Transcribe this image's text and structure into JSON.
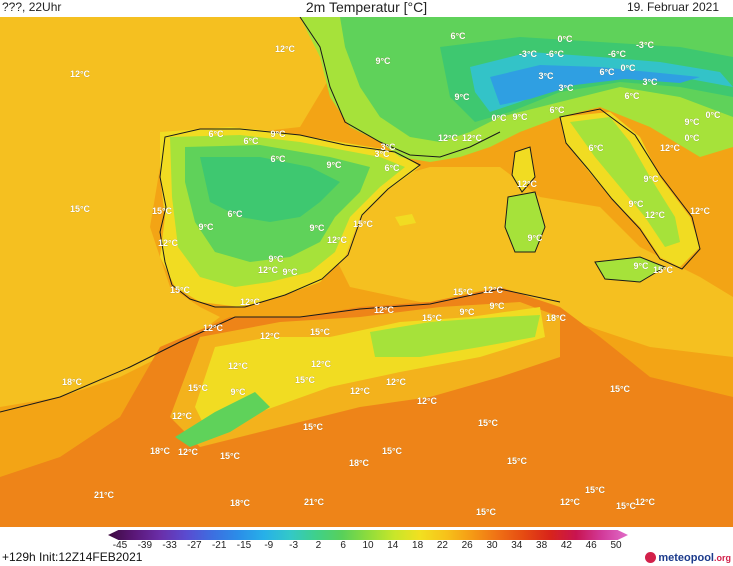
{
  "header": {
    "left": "???, 22Uhr",
    "title": "2m Temperatur [°C]",
    "right": "19. Februar 2021"
  },
  "footer": {
    "run_info": "+129h Init:12Z14FEB2021",
    "brand_main": "meteopool",
    "brand_tld": ".org"
  },
  "legend": {
    "ticks": [
      "-45",
      "-39",
      "-33",
      "-27",
      "-21",
      "-15",
      "-9",
      "-3",
      "2",
      "6",
      "10",
      "14",
      "18",
      "22",
      "26",
      "30",
      "34",
      "38",
      "42",
      "46",
      "50"
    ],
    "colors": [
      "#3d0b3f",
      "#5a1777",
      "#6a2ea8",
      "#5a4bd0",
      "#3d6ee0",
      "#2b8de8",
      "#27b0e8",
      "#33c8c8",
      "#3fd08a",
      "#58d05a",
      "#8edc3c",
      "#c7e62a",
      "#f2e020",
      "#f7c21a",
      "#f59a15",
      "#ef7015",
      "#e54a12",
      "#d8241a",
      "#c81450",
      "#d23a9a",
      "#e06cc8"
    ]
  },
  "map": {
    "colors": {
      "sea_warm": "#f3a415",
      "sea_mid": "#f5c020",
      "land_hot": "#ee8418",
      "land_warm": "#f3b21c",
      "yellow": "#f1dc22",
      "green_light": "#a6e23a",
      "green": "#5fd25a",
      "green_dark": "#3ec870",
      "cyan": "#33c3c8",
      "blue": "#2f9fe2"
    },
    "labels": [
      "12°C",
      "12°C",
      "6°C",
      "9°C",
      "0°C",
      "-3°C",
      "-6°C",
      "-6°C",
      "-3°C",
      "6°C",
      "0°C",
      "3°C",
      "3°C",
      "3°C",
      "9°C",
      "6°C",
      "0°C",
      "9°C",
      "6°C",
      "9°C",
      "0°C",
      "0°C",
      "3°C",
      "12°C",
      "12°C",
      "6°C",
      "9°C",
      "6°C",
      "3°C",
      "12°C",
      "6°C",
      "6°C",
      "9°C",
      "6°C",
      "9°C",
      "12°C",
      "9°C",
      "12°C",
      "15°C",
      "15°C",
      "6°C",
      "9°C",
      "12°C",
      "15°C",
      "9°C",
      "12°C",
      "9°C",
      "12°C",
      "9°C",
      "9°C",
      "12°C",
      "9°C",
      "15°C",
      "15°C",
      "12°C",
      "15°C",
      "12°C",
      "9°C",
      "9°C",
      "12°C",
      "15°C",
      "18°C",
      "12°C",
      "15°C",
      "12°C",
      "12°C",
      "12°C",
      "15°C",
      "12°C",
      "12°C",
      "18°C",
      "15°C",
      "9°C",
      "12°C",
      "12°C",
      "15°C",
      "18°C",
      "12°C",
      "15°C",
      "15°C",
      "15°C",
      "15°C",
      "18°C",
      "15°C",
      "15°C",
      "21°C",
      "18°C",
      "21°C",
      "12°C",
      "15°C",
      "12°C",
      "15°C"
    ]
  }
}
